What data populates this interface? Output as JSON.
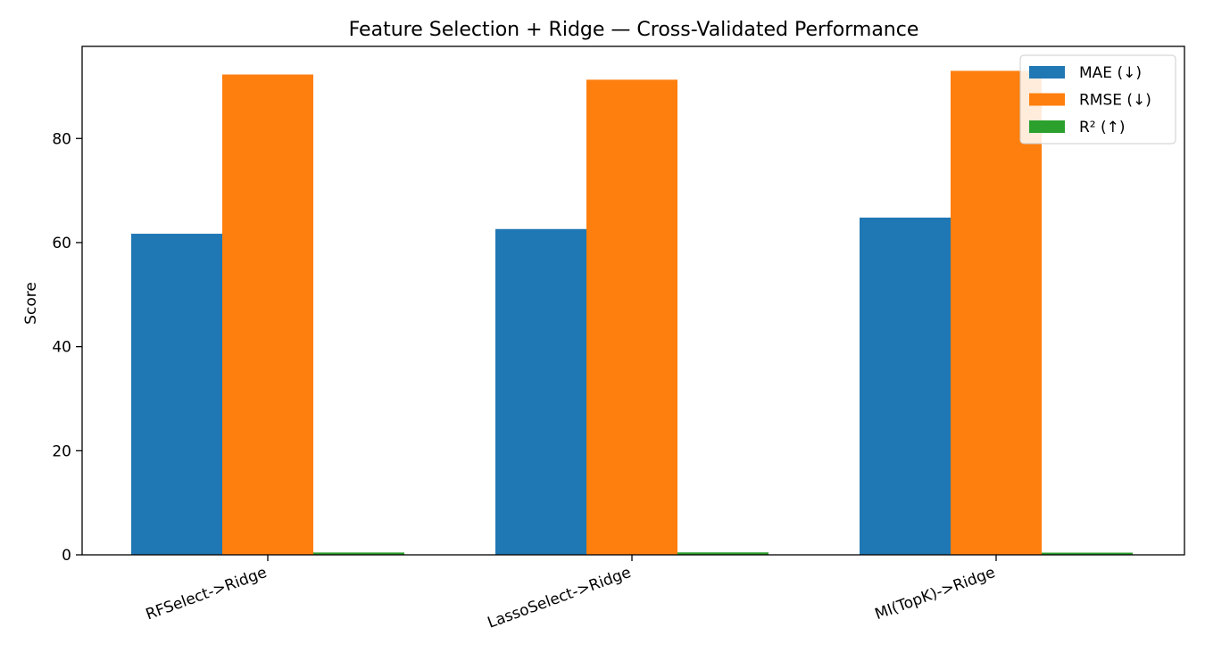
{
  "chart_data": {
    "type": "bar",
    "title": "Feature Selection + Ridge — Cross-Validated Performance",
    "xlabel": "",
    "ylabel": "Score",
    "categories": [
      "RFSelect->Ridge",
      "LassoSelect->Ridge",
      "MI(TopK)->Ridge"
    ],
    "series": [
      {
        "name": "MAE (↓)",
        "color": "#1f77b4",
        "values": [
          61.7,
          62.6,
          64.8
        ]
      },
      {
        "name": "RMSE (↓)",
        "color": "#ff7f0e",
        "values": [
          92.3,
          91.3,
          93.0
        ]
      },
      {
        "name": "R² (↑)",
        "color": "#2ca02c",
        "values": [
          0.45,
          0.47,
          0.42
        ]
      }
    ],
    "ylim": [
      0,
      97.7
    ],
    "yticks": [
      0,
      20,
      40,
      60,
      80
    ],
    "grid": false,
    "legend_position": "top-right"
  }
}
